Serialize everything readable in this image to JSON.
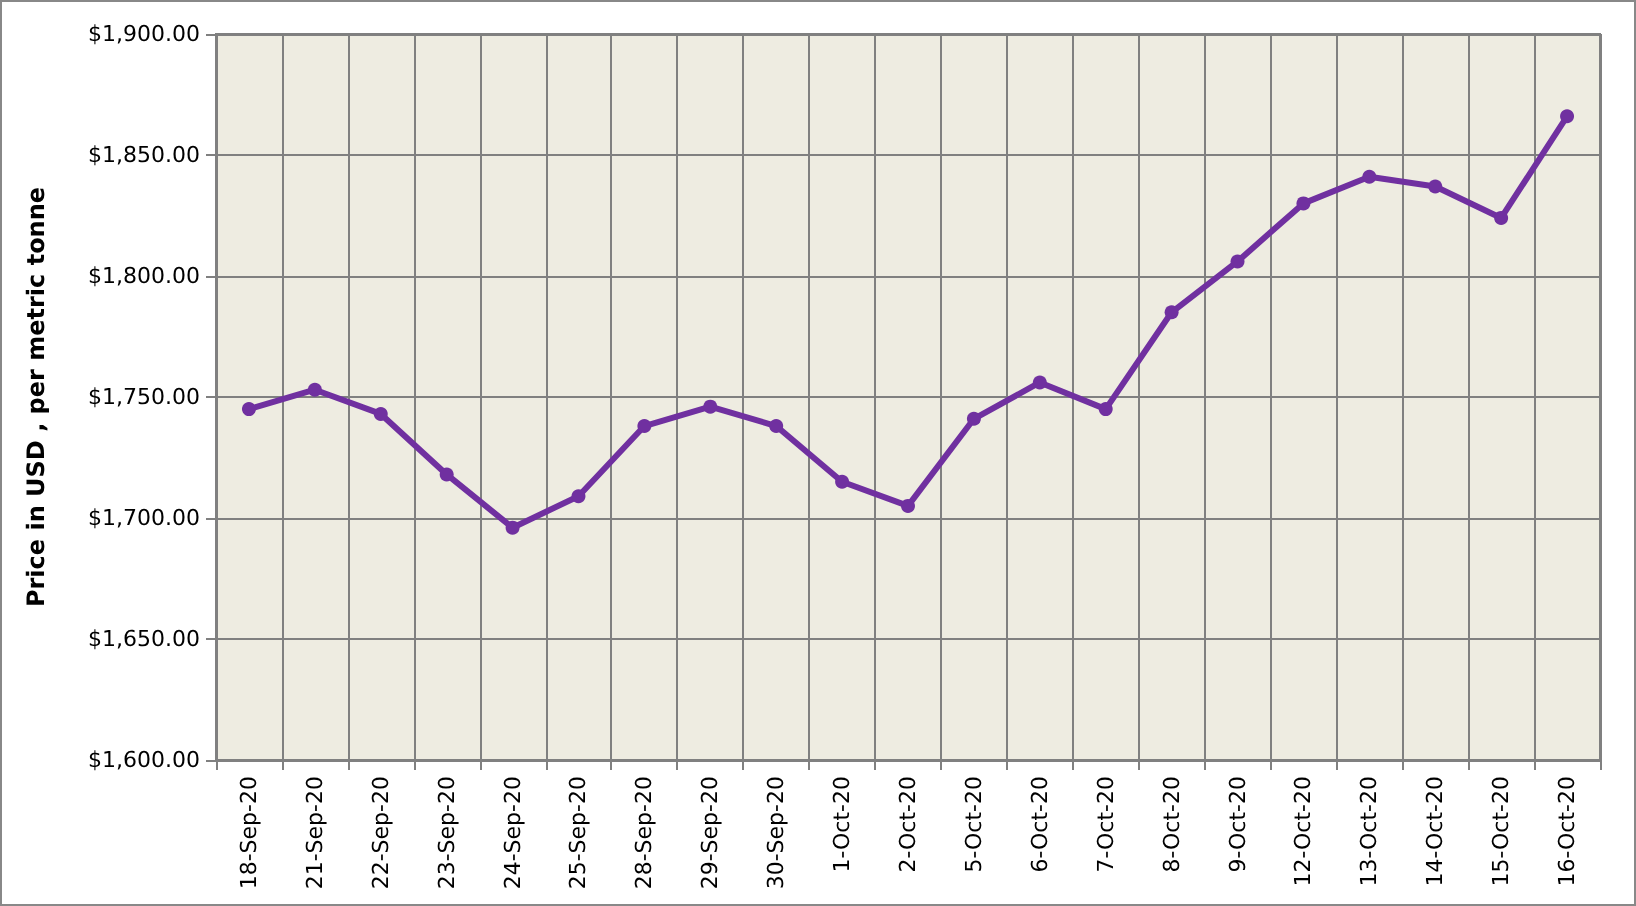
{
  "chart_data": {
    "type": "line",
    "ylabel": "Price in USD , per metric tonne",
    "categories": [
      "18-Sep-20",
      "21-Sep-20",
      "22-Sep-20",
      "23-Sep-20",
      "24-Sep-20",
      "25-Sep-20",
      "28-Sep-20",
      "29-Sep-20",
      "30-Sep-20",
      "1-Oct-20",
      "2-Oct-20",
      "5-Oct-20",
      "6-Oct-20",
      "7-Oct-20",
      "8-Oct-20",
      "9-Oct-20",
      "12-Oct-20",
      "13-Oct-20",
      "14-Oct-20",
      "15-Oct-20",
      "16-Oct-20"
    ],
    "series": [
      {
        "color": "#7030a0",
        "values": [
          1745,
          1753,
          1743,
          1718,
          1696,
          1709,
          1738,
          1746,
          1738,
          1715,
          1705,
          1741,
          1756,
          1745,
          1785,
          1806,
          1830,
          1841,
          1837,
          1824,
          1866
        ]
      }
    ],
    "ylim": [
      1600,
      1900
    ],
    "yticks": [
      {
        "value": 1600,
        "label": "$1,600.00"
      },
      {
        "value": 1650,
        "label": "$1,650.00"
      },
      {
        "value": 1700,
        "label": "$1,700.00"
      },
      {
        "value": 1750,
        "label": "$1,750.00"
      },
      {
        "value": 1800,
        "label": "$1,800.00"
      },
      {
        "value": 1850,
        "label": "$1,850.00"
      },
      {
        "value": 1900,
        "label": "$1,900.00"
      }
    ],
    "grid": true,
    "marker": "circle",
    "line_style": "solid"
  }
}
